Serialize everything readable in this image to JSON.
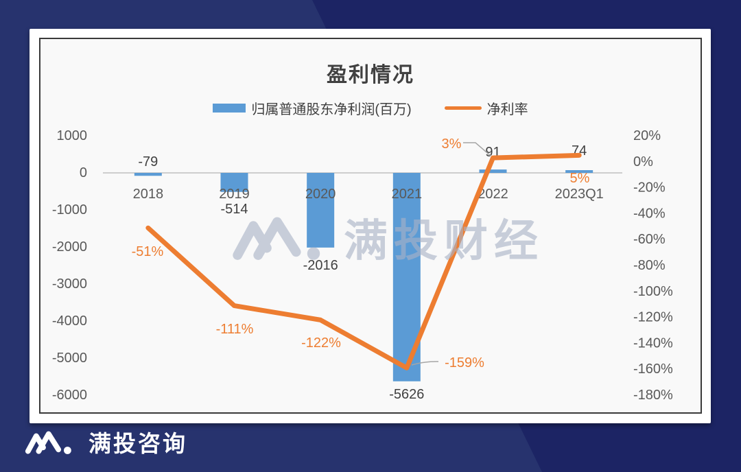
{
  "brand": {
    "navy_dark": "#1c2464",
    "navy_light": "#27336e",
    "watermark_color": "#a9b3c7",
    "bar_color": "#5B9BD5",
    "line_color": "#ED7D31"
  },
  "watermark": {
    "logo": "mantou-M-logo",
    "text": "满投财经"
  },
  "footer": {
    "logo": "mantou-M-logo",
    "text": "满投咨询"
  },
  "chart_data": {
    "type": "combo-bar-line",
    "title": "盈利情况",
    "categories": [
      "2018",
      "2019",
      "2020",
      "2021",
      "2022",
      "2023Q1"
    ],
    "series": [
      {
        "name": "归属普通股东净利润(百万)",
        "type": "bar",
        "axis": "left",
        "color": "#5B9BD5",
        "values": [
          -79,
          -514,
          -2016,
          -5626,
          91,
          74
        ],
        "data_labels": [
          "-79",
          "-514",
          "-2016",
          "-5626",
          "91",
          "74"
        ]
      },
      {
        "name": "净利率",
        "type": "line",
        "axis": "right",
        "color": "#ED7D31",
        "values_percent": [
          -51,
          -111,
          -122,
          -159,
          3,
          5
        ],
        "data_labels": [
          "-51%",
          "-111%",
          "-122%",
          "-159%",
          "3%",
          "5%"
        ]
      }
    ],
    "left_axis": {
      "ticks": [
        "1000",
        "0",
        "-1000",
        "-2000",
        "-3000",
        "-4000",
        "-5000",
        "-6000"
      ],
      "min": -6000,
      "max": 1000
    },
    "right_axis": {
      "ticks": [
        "20%",
        "0%",
        "-20%",
        "-40%",
        "-60%",
        "-80%",
        "-100%",
        "-120%",
        "-140%",
        "-160%",
        "-180%"
      ],
      "min_percent": -180,
      "max_percent": 20
    },
    "legend_position": "top",
    "gridlines": "none-except-zero-axis"
  }
}
